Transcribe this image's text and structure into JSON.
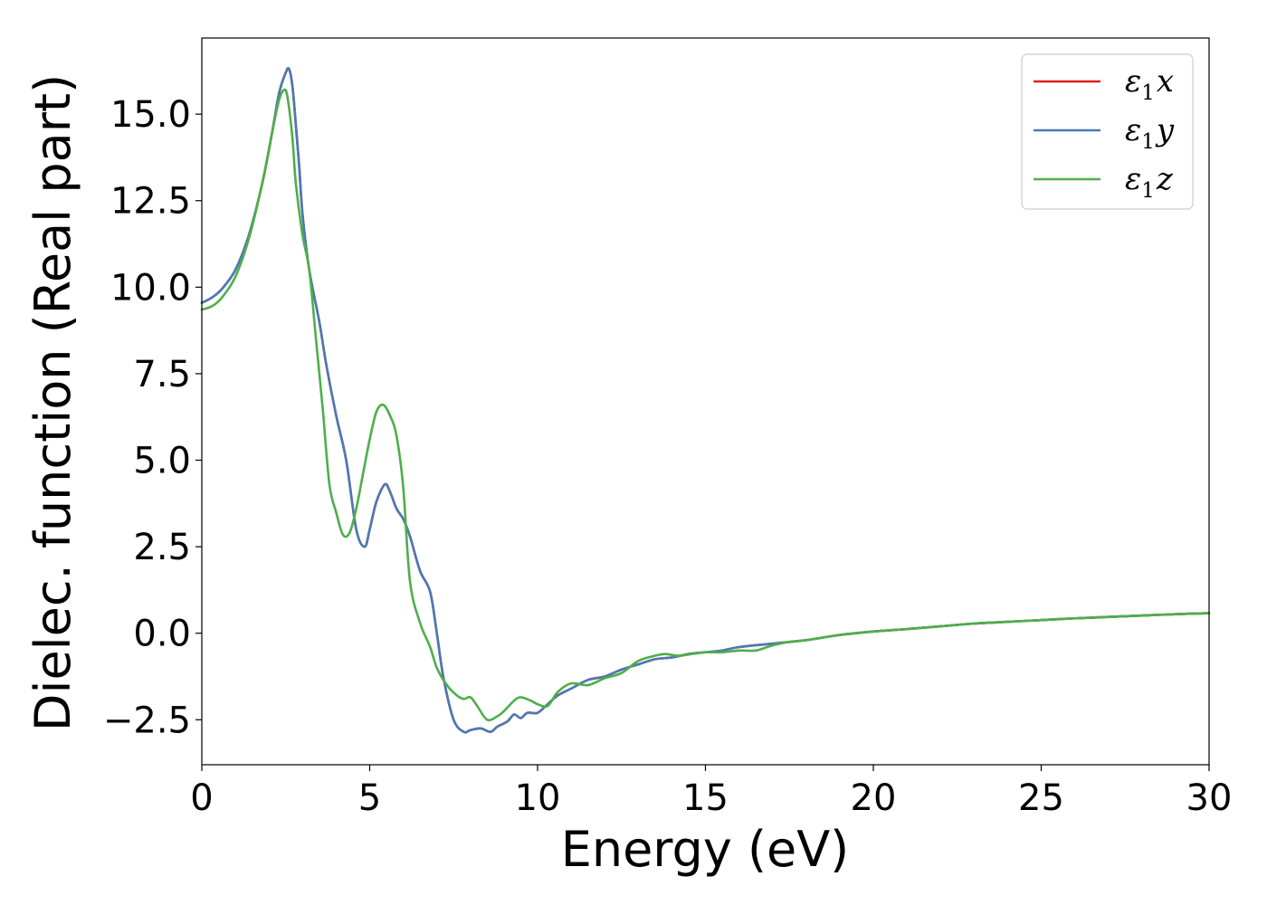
{
  "chart_data": {
    "type": "line",
    "xlabel": "Energy (eV)",
    "ylabel": "Dielec. function (Real part)",
    "xlim": [
      0,
      30
    ],
    "ylim": [
      -3.8,
      17.2
    ],
    "xticks": [
      0,
      5,
      10,
      15,
      20,
      25,
      30
    ],
    "xtick_labels": [
      "0",
      "5",
      "10",
      "15",
      "20",
      "25",
      "30"
    ],
    "yticks": [
      -2.5,
      0,
      2.5,
      5,
      7.5,
      10,
      12.5,
      15
    ],
    "ytick_labels": [
      "−2.5",
      "0.0",
      "2.5",
      "5.0",
      "7.5",
      "10.0",
      "12.5",
      "15.0"
    ],
    "grid": false,
    "legend_position": "top-right",
    "series": [
      {
        "name": "ε₁x",
        "legend_main": "ε",
        "legend_sub": "1",
        "legend_var": "x",
        "color": "#e41a1c",
        "x": [
          0,
          0.3,
          0.6,
          1.0,
          1.4,
          1.8,
          2.1,
          2.3,
          2.5,
          2.6,
          2.7,
          2.8,
          2.9,
          3.0,
          3.2,
          3.5,
          3.7,
          4.0,
          4.3,
          4.6,
          4.85,
          5.0,
          5.2,
          5.45,
          5.6,
          5.8,
          6.0,
          6.2,
          6.5,
          6.8,
          7.0,
          7.2,
          7.5,
          7.8,
          8.0,
          8.3,
          8.6,
          8.8,
          9.1,
          9.3,
          9.5,
          9.7,
          10.0,
          10.3,
          10.6,
          11.0,
          11.5,
          12.0,
          12.5,
          13.0,
          13.5,
          14.0,
          14.5,
          15.0,
          15.5,
          16.0,
          17.0,
          18.0,
          19.0,
          20.0,
          21.0,
          22.0,
          23.0,
          24.0,
          25.0,
          26.0,
          27.0,
          28.0,
          29.0,
          30.0
        ],
        "y": [
          9.55,
          9.7,
          9.95,
          10.5,
          11.5,
          13.0,
          14.5,
          15.6,
          16.2,
          16.3,
          15.8,
          14.7,
          13.5,
          12.1,
          10.5,
          9.0,
          7.8,
          6.3,
          5.0,
          3.0,
          2.5,
          3.0,
          3.8,
          4.3,
          4.1,
          3.6,
          3.3,
          2.8,
          1.8,
          1.2,
          0.0,
          -1.3,
          -2.5,
          -2.85,
          -2.8,
          -2.75,
          -2.85,
          -2.7,
          -2.55,
          -2.35,
          -2.45,
          -2.3,
          -2.3,
          -2.05,
          -1.8,
          -1.6,
          -1.35,
          -1.25,
          -1.05,
          -0.9,
          -0.75,
          -0.7,
          -0.6,
          -0.55,
          -0.5,
          -0.4,
          -0.3,
          -0.2,
          -0.05,
          0.05,
          0.12,
          0.2,
          0.28,
          0.33,
          0.38,
          0.43,
          0.47,
          0.51,
          0.55,
          0.58
        ]
      },
      {
        "name": "ε₁y",
        "legend_main": "ε",
        "legend_sub": "1",
        "legend_var": "y",
        "color": "#4a7ab5",
        "x": [
          0,
          0.3,
          0.6,
          1.0,
          1.4,
          1.8,
          2.1,
          2.3,
          2.5,
          2.6,
          2.7,
          2.8,
          2.9,
          3.0,
          3.2,
          3.5,
          3.7,
          4.0,
          4.3,
          4.6,
          4.85,
          5.0,
          5.2,
          5.45,
          5.6,
          5.8,
          6.0,
          6.2,
          6.5,
          6.8,
          7.0,
          7.2,
          7.5,
          7.8,
          8.0,
          8.3,
          8.6,
          8.8,
          9.1,
          9.3,
          9.5,
          9.7,
          10.0,
          10.3,
          10.6,
          11.0,
          11.5,
          12.0,
          12.5,
          13.0,
          13.5,
          14.0,
          14.5,
          15.0,
          15.5,
          16.0,
          17.0,
          18.0,
          19.0,
          20.0,
          21.0,
          22.0,
          23.0,
          24.0,
          25.0,
          26.0,
          27.0,
          28.0,
          29.0,
          30.0
        ],
        "y": [
          9.55,
          9.7,
          9.95,
          10.5,
          11.5,
          13.0,
          14.5,
          15.6,
          16.2,
          16.3,
          15.8,
          14.7,
          13.5,
          12.1,
          10.5,
          9.0,
          7.8,
          6.3,
          5.0,
          3.0,
          2.5,
          3.0,
          3.8,
          4.3,
          4.1,
          3.6,
          3.3,
          2.8,
          1.8,
          1.2,
          0.0,
          -1.3,
          -2.5,
          -2.85,
          -2.8,
          -2.75,
          -2.85,
          -2.7,
          -2.55,
          -2.35,
          -2.45,
          -2.3,
          -2.3,
          -2.05,
          -1.8,
          -1.6,
          -1.35,
          -1.25,
          -1.05,
          -0.9,
          -0.75,
          -0.7,
          -0.6,
          -0.55,
          -0.5,
          -0.4,
          -0.3,
          -0.2,
          -0.05,
          0.05,
          0.12,
          0.2,
          0.28,
          0.33,
          0.38,
          0.43,
          0.47,
          0.51,
          0.55,
          0.58
        ]
      },
      {
        "name": "ε₁z",
        "legend_main": "ε",
        "legend_sub": "1",
        "legend_var": "z",
        "color": "#4daf4a",
        "x": [
          0,
          0.3,
          0.6,
          1.0,
          1.4,
          1.8,
          2.1,
          2.3,
          2.45,
          2.55,
          2.7,
          2.8,
          3.0,
          3.2,
          3.4,
          3.6,
          3.8,
          4.0,
          4.2,
          4.4,
          4.6,
          4.8,
          5.0,
          5.2,
          5.4,
          5.6,
          5.8,
          6.0,
          6.2,
          6.5,
          6.8,
          7.0,
          7.3,
          7.6,
          7.8,
          8.0,
          8.2,
          8.5,
          8.8,
          9.0,
          9.3,
          9.5,
          9.8,
          10.0,
          10.3,
          10.6,
          11.0,
          11.5,
          12.0,
          12.5,
          13.0,
          13.5,
          13.8,
          14.2,
          14.6,
          15.0,
          15.5,
          16.0,
          16.5,
          17.0,
          17.5,
          18.0,
          19.0,
          20.0,
          21.0,
          22.0,
          23.0,
          24.0,
          25.0,
          26.0,
          27.0,
          28.0,
          29.0,
          30.0
        ],
        "y": [
          9.35,
          9.45,
          9.7,
          10.3,
          11.4,
          13.0,
          14.5,
          15.4,
          15.7,
          15.5,
          14.3,
          13.0,
          11.5,
          10.5,
          8.5,
          6.5,
          4.3,
          3.5,
          2.85,
          2.9,
          3.6,
          4.6,
          5.6,
          6.4,
          6.6,
          6.3,
          5.7,
          4.2,
          1.5,
          0.3,
          -0.4,
          -1.0,
          -1.5,
          -1.8,
          -1.9,
          -1.85,
          -2.1,
          -2.5,
          -2.4,
          -2.25,
          -1.95,
          -1.85,
          -1.95,
          -2.05,
          -2.1,
          -1.7,
          -1.45,
          -1.5,
          -1.3,
          -1.15,
          -0.8,
          -0.65,
          -0.6,
          -0.65,
          -0.6,
          -0.55,
          -0.55,
          -0.5,
          -0.5,
          -0.35,
          -0.25,
          -0.2,
          -0.05,
          0.05,
          0.12,
          0.2,
          0.28,
          0.33,
          0.38,
          0.43,
          0.47,
          0.51,
          0.55,
          0.58
        ]
      }
    ]
  }
}
